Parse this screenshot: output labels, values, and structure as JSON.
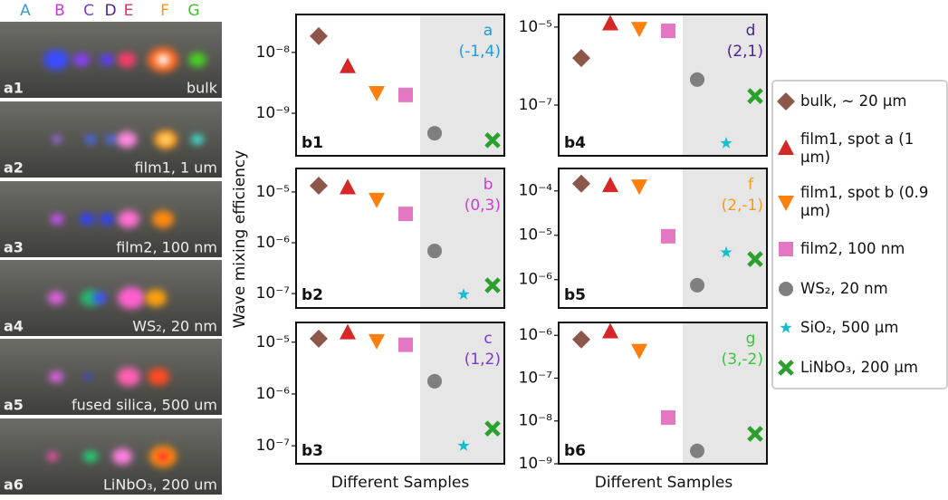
{
  "beam_labels": [
    {
      "text": "A",
      "color": "#3a9ad9"
    },
    {
      "text": "B",
      "color": "#c23bd8"
    },
    {
      "text": "C",
      "color": "#7a3fd0"
    },
    {
      "text": "D",
      "color": "#4b2390"
    },
    {
      "text": "E",
      "color": "#e0306a"
    },
    {
      "text": "F",
      "color": "#f09a1a"
    },
    {
      "text": "G",
      "color": "#3cc42a"
    }
  ],
  "photos": [
    {
      "label": "a1",
      "caption": "bulk"
    },
    {
      "label": "a2",
      "caption": "film1, 1 um"
    },
    {
      "label": "a3",
      "caption": "film2, 100 nm"
    },
    {
      "label": "a4",
      "caption": "WS₂, 20 nm"
    },
    {
      "label": "a5",
      "caption": "fused silica, 500 um"
    },
    {
      "label": "a6",
      "caption": "LiNbO₃, 200 um"
    }
  ],
  "y_label": "Wave mixing efficiency",
  "x_label": "Different Samples",
  "legend": [
    {
      "name": "bulk, ~ 20 μm",
      "color": "#8c564b",
      "marker": "diamond"
    },
    {
      "name": "film1, spot a (1 μm)",
      "color": "#d62728",
      "marker": "triangle-up"
    },
    {
      "name": "film1, spot b (0.9 μm)",
      "color": "#ff7f0e",
      "marker": "triangle-down"
    },
    {
      "name": "film2, 100 nm",
      "color": "#e377c2",
      "marker": "square"
    },
    {
      "name": "WS₂, 20 nm",
      "color": "#7f7f7f",
      "marker": "circle"
    },
    {
      "name": "SiO₂, 500 μm",
      "color": "#17becf",
      "marker": "star"
    },
    {
      "name": "LiNbO₃, 200 μm",
      "color": "#2ca02c",
      "marker": "x"
    }
  ],
  "chart_data": [
    {
      "type": "scatter",
      "log_y": true,
      "panel": "b1",
      "annotation": "a",
      "indices": "(-1,4)",
      "annotation_color": "#1f9ae0",
      "ylim": [
        2e-10,
        4.2e-08
      ],
      "yticks": [
        {
          "value": 1e-09,
          "label": "10⁻⁹"
        },
        {
          "value": 1e-08,
          "label": "10⁻⁸"
        }
      ],
      "values": [
        1.85e-08,
        5.8e-09,
        2.2e-09,
        2e-09,
        4.7e-10,
        null,
        3.6e-10
      ]
    },
    {
      "type": "scatter",
      "log_y": true,
      "panel": "b2",
      "annotation": "b",
      "indices": "(0,3)",
      "annotation_color": "#d23ad6",
      "ylim": [
        5.2e-08,
        2.9e-05
      ],
      "yticks": [
        {
          "value": 1e-07,
          "label": "10⁻⁷"
        },
        {
          "value": 1e-06,
          "label": "10⁻⁶"
        },
        {
          "value": 1e-05,
          "label": "10⁻⁵"
        }
      ],
      "values": [
        1.33e-05,
        1.2e-05,
        7.2e-06,
        3.7e-06,
        6.9e-07,
        9.6e-08,
        1.45e-07
      ]
    },
    {
      "type": "scatter",
      "log_y": true,
      "panel": "b3",
      "annotation": "c",
      "indices": "(1,2)",
      "annotation_color": "#7a3acb",
      "ylim": [
        4.5e-08,
        2.4e-05
      ],
      "yticks": [
        {
          "value": 1e-07,
          "label": "10⁻⁷"
        },
        {
          "value": 1e-06,
          "label": "10⁻⁶"
        },
        {
          "value": 1e-05,
          "label": "10⁻⁵"
        }
      ],
      "values": [
        1.17e-05,
        1.5e-05,
        1.08e-05,
        8.9e-06,
        1.76e-06,
        1e-07,
        2.15e-07
      ]
    },
    {
      "type": "scatter",
      "log_y": true,
      "panel": "b4",
      "annotation": "d",
      "indices": "(2,1)",
      "annotation_color": "#4b2390",
      "ylim": [
        5e-09,
        2.1e-05
      ],
      "yticks": [
        {
          "value": 1e-07,
          "label": "10⁻⁷"
        },
        {
          "value": 1e-05,
          "label": "10⁻⁵"
        }
      ],
      "values": [
        1.6e-06,
        1.2e-05,
        9.3e-06,
        8e-06,
        4.5e-07,
        1.05e-08,
        1.7e-07
      ]
    },
    {
      "type": "scatter",
      "log_y": true,
      "panel": "b5",
      "annotation": "f",
      "indices": "(2,-1)",
      "annotation_color": "#f39a1e",
      "ylim": [
        2.3e-07,
        0.00032
      ],
      "yticks": [
        {
          "value": 1e-06,
          "label": "10⁻⁶"
        },
        {
          "value": 1e-05,
          "label": "10⁻⁵"
        },
        {
          "value": 0.0001,
          "label": "10⁻⁴"
        }
      ],
      "values": [
        0.000146,
        0.00013,
        0.00013,
        9.5e-06,
        7.5e-07,
        4.1e-06,
        2.9e-06
      ]
    },
    {
      "type": "scatter",
      "log_y": true,
      "panel": "b6",
      "annotation": "g",
      "indices": "(3,-2)",
      "annotation_color": "#3ac43a",
      "ylim": [
        1e-09,
        2e-06
      ],
      "yticks": [
        {
          "value": 1e-09,
          "label": "10⁻⁹"
        },
        {
          "value": 1e-08,
          "label": "10⁻⁸"
        },
        {
          "value": 1e-07,
          "label": "10⁻⁷"
        },
        {
          "value": 1e-06,
          "label": "10⁻⁶"
        }
      ],
      "values": [
        8e-07,
        1.2e-06,
        4.5e-07,
        1.2e-08,
        2e-09,
        null,
        5e-09
      ]
    }
  ]
}
